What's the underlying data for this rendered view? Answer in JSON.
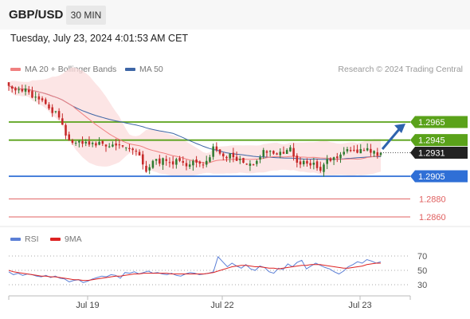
{
  "header": {
    "symbol": "GBP/USD",
    "timeframe": "30 MIN"
  },
  "datetime": "Tuesday, July 23, 2024 4:01:53 AM CET",
  "legend": {
    "ma20_label": "MA 20 + Bollinger Bands",
    "ma50_label": "MA 50",
    "credit": "Research © 2024 Trading Central",
    "rsi_label": "RSI",
    "rsi_ma_label": "9MA"
  },
  "colors": {
    "up": "#2f7a2f",
    "down": "#c62828",
    "ma20": "#f08080",
    "bollinger": "#fbdcdc",
    "ma50": "#3e66a6",
    "resistance": "#5aa21a",
    "support_blue": "#2f6fd6",
    "support_red": "#e06060",
    "last": "#222222",
    "rsi": "#5b7fd6",
    "rsi_ma": "#d22"
  },
  "chart_data": {
    "type": "candlestick",
    "x_tick_labels": [
      "Jul 19",
      "Jul 22",
      "Jul 23"
    ],
    "levels": [
      {
        "label": "1.2965",
        "value": 1.2965,
        "kind": "resistance"
      },
      {
        "label": "1.2945",
        "value": 1.2945,
        "kind": "resistance"
      },
      {
        "label": "1.2931",
        "value": 1.2931,
        "kind": "last"
      },
      {
        "label": "1.2905",
        "value": 1.2905,
        "kind": "pivot"
      },
      {
        "label": "1.2880",
        "value": 1.288,
        "kind": "support"
      },
      {
        "label": "1.2860",
        "value": 1.286,
        "kind": "support"
      }
    ],
    "closes": [
      1.3005,
      1.3002,
      1.3,
      1.3001,
      1.2999,
      1.3002,
      1.2998,
      1.2992,
      1.2993,
      1.299,
      1.2989,
      1.2985,
      1.298,
      1.2975,
      1.2977,
      1.297,
      1.2962,
      1.295,
      1.2945,
      1.2942,
      1.2942,
      1.2944,
      1.2941,
      1.2943,
      1.294,
      1.2942,
      1.2939,
      1.2943,
      1.2941,
      1.2938,
      1.2938,
      1.294,
      1.2939,
      1.294,
      1.2938,
      1.2937,
      1.2935,
      1.2934,
      1.2933,
      1.2928,
      1.2918,
      1.291,
      1.2915,
      1.2922,
      1.2924,
      1.2919,
      1.2925,
      1.2922,
      1.292,
      1.2918,
      1.2924,
      1.2922,
      1.292,
      1.2916,
      1.2918,
      1.2922,
      1.292,
      1.2919,
      1.2917,
      1.2922,
      1.2926,
      1.2938,
      1.2934,
      1.293,
      1.2927,
      1.2925,
      1.293,
      1.2926,
      1.2922,
      1.2924,
      1.292,
      1.2918,
      1.2919,
      1.2918,
      1.2922,
      1.2926,
      1.2934,
      1.2931,
      1.2933,
      1.293,
      1.2929,
      1.2932,
      1.293,
      1.2934,
      1.2937,
      1.2927,
      1.292,
      1.2918,
      1.2922,
      1.2919,
      1.2917,
      1.292,
      1.2914,
      1.2911,
      1.2918,
      1.2924,
      1.2922,
      1.2926,
      1.2925,
      1.2929,
      1.2932,
      1.2935,
      1.2933,
      1.2934,
      1.2931,
      1.2935,
      1.2933,
      1.2936,
      1.2931,
      1.2933,
      1.2928,
      1.2931
    ],
    "forecast": {
      "from": 1.2935,
      "to": 1.2965,
      "direction": "up"
    },
    "indicators": [
      "MA 20",
      "Bollinger Bands",
      "MA 50"
    ],
    "rsi": {
      "y_ticks": [
        70,
        50,
        30
      ],
      "values": [
        48,
        44,
        46,
        43,
        45,
        44,
        42,
        41,
        43,
        40,
        42,
        39,
        38,
        34,
        36,
        37,
        33,
        35,
        38,
        40,
        42,
        41,
        44,
        43,
        39,
        47,
        46,
        48,
        45,
        47,
        49,
        46,
        47,
        45,
        44,
        46,
        43,
        42,
        45,
        47,
        46,
        44,
        45,
        46,
        48,
        69,
        62,
        55,
        60,
        56,
        53,
        58,
        52,
        50,
        56,
        54,
        48,
        46,
        53,
        51,
        59,
        55,
        61,
        64,
        52,
        56,
        60,
        57,
        54,
        52,
        48,
        45,
        49,
        55,
        58,
        62,
        60,
        65,
        63,
        60,
        62
      ],
      "ma_values": [
        50,
        48,
        47,
        46,
        45,
        44,
        43,
        42,
        42,
        41,
        41,
        40,
        39,
        38,
        37,
        37,
        36,
        36,
        37,
        38,
        39,
        40,
        41,
        42,
        42,
        43,
        44,
        45,
        45,
        46,
        46,
        46,
        46,
        46,
        46,
        45,
        45,
        45,
        45,
        45,
        45,
        45,
        45,
        46,
        47,
        49,
        51,
        53,
        55,
        56,
        57,
        57,
        56,
        55,
        55,
        54,
        53,
        53,
        52,
        53,
        54,
        55,
        56,
        57,
        57,
        58,
        58,
        58,
        57,
        56,
        55,
        54,
        53,
        53,
        54,
        55,
        56,
        58,
        59,
        60,
        60
      ]
    }
  }
}
